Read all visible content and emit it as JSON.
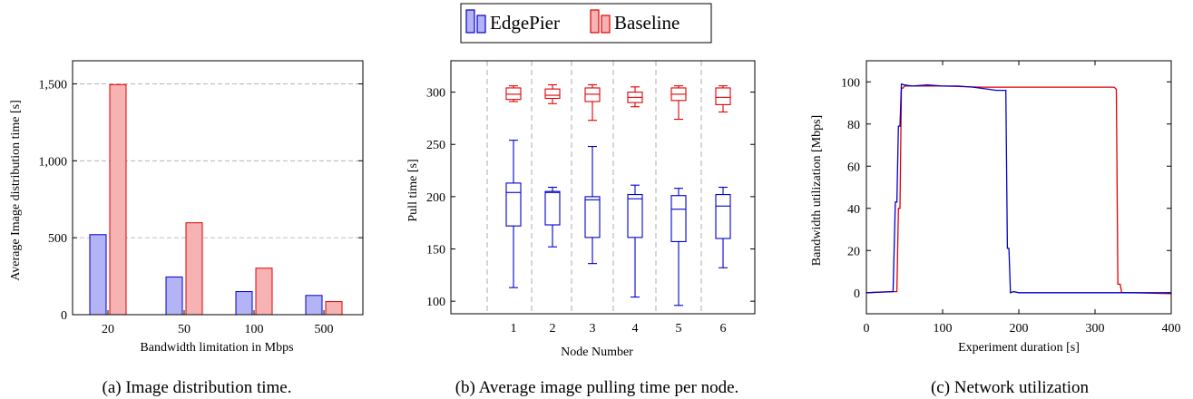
{
  "legend": {
    "entries": [
      {
        "name": "EdgePier",
        "color": "#0000cc",
        "fill": "#b3b3f5"
      },
      {
        "name": "Baseline",
        "color": "#e00000",
        "fill": "#f7b3b3"
      }
    ]
  },
  "captions": {
    "a": "(a) Image distribution time.",
    "b": "(b) Average image pulling time per node.",
    "c": "(c) Network utilization"
  },
  "chart_data": [
    {
      "type": "bar",
      "title": "",
      "xlabel": "Bandwidth limitation in Mbps",
      "ylabel": "Average Image distribution time [s]",
      "categories": [
        "20",
        "50",
        "100",
        "500"
      ],
      "ylim": [
        0,
        1650
      ],
      "yticks": [
        0,
        500,
        1000,
        1500
      ],
      "ytick_labels": [
        "0",
        "500",
        "1,000",
        "1,500"
      ],
      "grid": "horizontal dashed",
      "series": [
        {
          "name": "EdgePier",
          "values": [
            520,
            245,
            150,
            125
          ]
        },
        {
          "name": "Baseline",
          "values": [
            1495,
            597,
            302,
            85
          ]
        }
      ]
    },
    {
      "type": "box",
      "title": "",
      "xlabel": "Node Number",
      "ylabel": "Pull time [s]",
      "categories": [
        "1",
        "2",
        "3",
        "4",
        "5",
        "6"
      ],
      "ylim": [
        88,
        330
      ],
      "yticks": [
        100,
        150,
        200,
        250,
        300
      ],
      "grid": "vertical dashed separators",
      "series": [
        {
          "name": "EdgePier",
          "boxes": [
            {
              "min": 113,
              "q1": 172,
              "median": 204,
              "q3": 213,
              "max": 254
            },
            {
              "min": 152,
              "q1": 173,
              "median": 204,
              "q3": 205,
              "max": 209
            },
            {
              "min": 136,
              "q1": 161,
              "median": 197,
              "q3": 200,
              "max": 248
            },
            {
              "min": 104,
              "q1": 161,
              "median": 198,
              "q3": 202,
              "max": 211
            },
            {
              "min": 96,
              "q1": 157,
              "median": 188,
              "q3": 201,
              "max": 208
            },
            {
              "min": 132,
              "q1": 160,
              "median": 191,
              "q3": 202,
              "max": 209
            }
          ]
        },
        {
          "name": "Baseline",
          "boxes": [
            {
              "min": 291,
              "q1": 293,
              "median": 298,
              "q3": 304,
              "max": 306
            },
            {
              "min": 289,
              "q1": 294,
              "median": 297,
              "q3": 303,
              "max": 307
            },
            {
              "min": 273,
              "q1": 291,
              "median": 298,
              "q3": 304,
              "max": 307
            },
            {
              "min": 286,
              "q1": 290,
              "median": 295,
              "q3": 300,
              "max": 305
            },
            {
              "min": 274,
              "q1": 292,
              "median": 298,
              "q3": 304,
              "max": 306
            },
            {
              "min": 281,
              "q1": 288,
              "median": 295,
              "q3": 304,
              "max": 306
            }
          ]
        }
      ]
    },
    {
      "type": "line",
      "title": "",
      "xlabel": "Experiment duration [s]",
      "ylabel": "Bandwidth utilization [Mbps]",
      "xlim": [
        0,
        400
      ],
      "ylim": [
        -10,
        110
      ],
      "xticks": [
        0,
        100,
        200,
        300,
        400
      ],
      "yticks": [
        0,
        20,
        40,
        60,
        80,
        100
      ],
      "grid": false,
      "series": [
        {
          "name": "EdgePier",
          "x": [
            0,
            35,
            38,
            40,
            42,
            44,
            46,
            50,
            60,
            80,
            100,
            120,
            140,
            160,
            170,
            183,
            185,
            187,
            189,
            193,
            200,
            250,
            300,
            340,
            400
          ],
          "y": [
            0,
            0.5,
            43,
            43,
            79,
            79,
            99,
            98.5,
            98,
            98.5,
            98,
            98,
            97.5,
            96.5,
            96,
            96,
            21,
            21,
            0,
            0.5,
            0,
            0,
            0,
            0,
            0
          ]
        },
        {
          "name": "Baseline",
          "x": [
            0,
            30,
            40,
            42,
            44,
            46,
            48,
            50,
            60,
            80,
            100,
            150,
            200,
            250,
            300,
            325,
            328,
            330,
            333,
            335,
            350,
            400
          ],
          "y": [
            0,
            0.5,
            0.5,
            40,
            40,
            97,
            97,
            98,
            98,
            98,
            98,
            97.5,
            97.5,
            97.5,
            97.5,
            97.5,
            96.5,
            4,
            4,
            0,
            0,
            -0.5
          ]
        }
      ]
    }
  ]
}
